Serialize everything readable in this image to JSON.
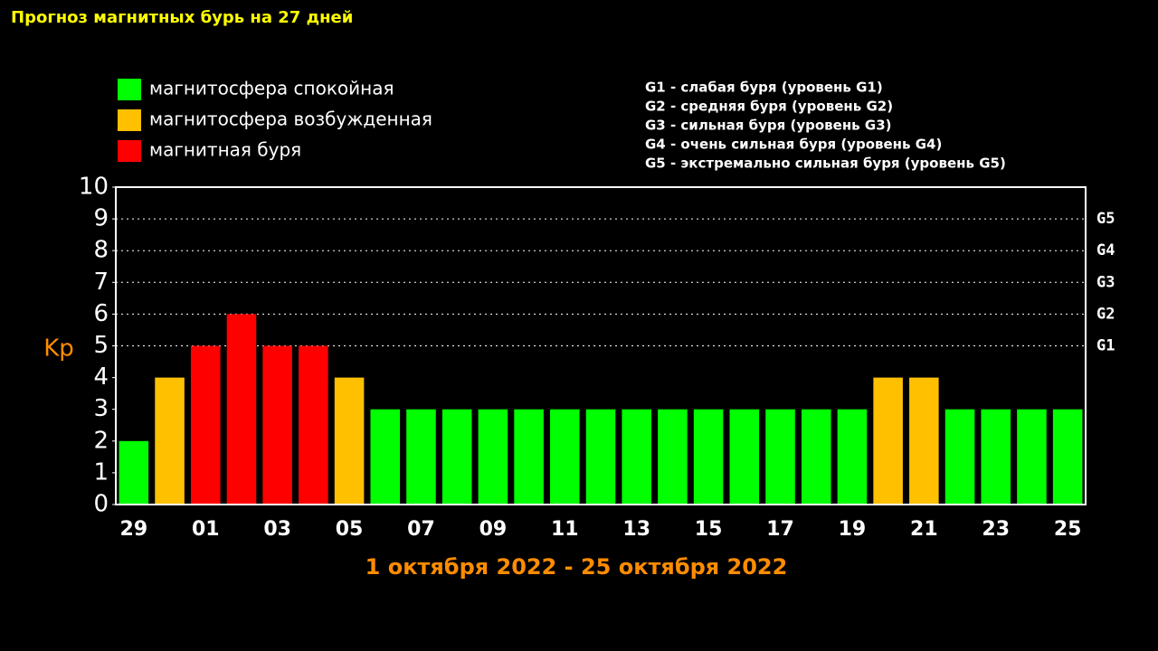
{
  "chart_data": {
    "type": "bar",
    "title": "Прогноз магнитных бурь на 27 дней",
    "x_label": "1 октября 2022 - 25 октября 2022",
    "y_label": "Kp",
    "categories": [
      "29",
      null,
      "01",
      null,
      "03",
      null,
      "05",
      null,
      "07",
      null,
      "09",
      null,
      "11",
      null,
      "13",
      null,
      "15",
      null,
      "17",
      null,
      "19",
      null,
      "21",
      null,
      "23",
      null,
      "25"
    ],
    "values": [
      2,
      4,
      5,
      6,
      5,
      5,
      4,
      3,
      3,
      3,
      3,
      3,
      3,
      3,
      3,
      3,
      3,
      3,
      3,
      3,
      3,
      4,
      4,
      3,
      3,
      3,
      3
    ],
    "colors": [
      "#00ff00",
      "#ffc000",
      "#ff0000",
      "#ff0000",
      "#ff0000",
      "#ff0000",
      "#ffc000",
      "#00ff00",
      "#00ff00",
      "#00ff00",
      "#00ff00",
      "#00ff00",
      "#00ff00",
      "#00ff00",
      "#00ff00",
      "#00ff00",
      "#00ff00",
      "#00ff00",
      "#00ff00",
      "#00ff00",
      "#00ff00",
      "#ffc000",
      "#ffc000",
      "#00ff00",
      "#00ff00",
      "#00ff00",
      "#00ff00"
    ],
    "ylim": [
      0,
      10
    ],
    "yticks": [
      0,
      1,
      2,
      3,
      4,
      5,
      6,
      7,
      8,
      9,
      10
    ],
    "y2lim": [
      0,
      10
    ],
    "y2ticks": [
      {
        "value": 5,
        "label": "G1"
      },
      {
        "value": 6,
        "label": "G2"
      },
      {
        "value": 7,
        "label": "G3"
      },
      {
        "value": 8,
        "label": "G4"
      },
      {
        "value": 9,
        "label": "G5"
      }
    ],
    "legend": [
      {
        "name": "магнитосфера спокойная",
        "color": "#00ff00"
      },
      {
        "name": "магнитосфера возбужденная",
        "color": "#ffc000"
      },
      {
        "name": "магнитная буря",
        "color": "#ff0000"
      }
    ],
    "notes": [
      "G1 - слабая буря (уровень G1)",
      "G2 - средняя буря (уровень G2)",
      "G3 - сильная буря (уровень G3)",
      "G4 - очень сильная буря (уровень G4)",
      "G5 - экстремально сильная буря (уровень G5)"
    ]
  }
}
